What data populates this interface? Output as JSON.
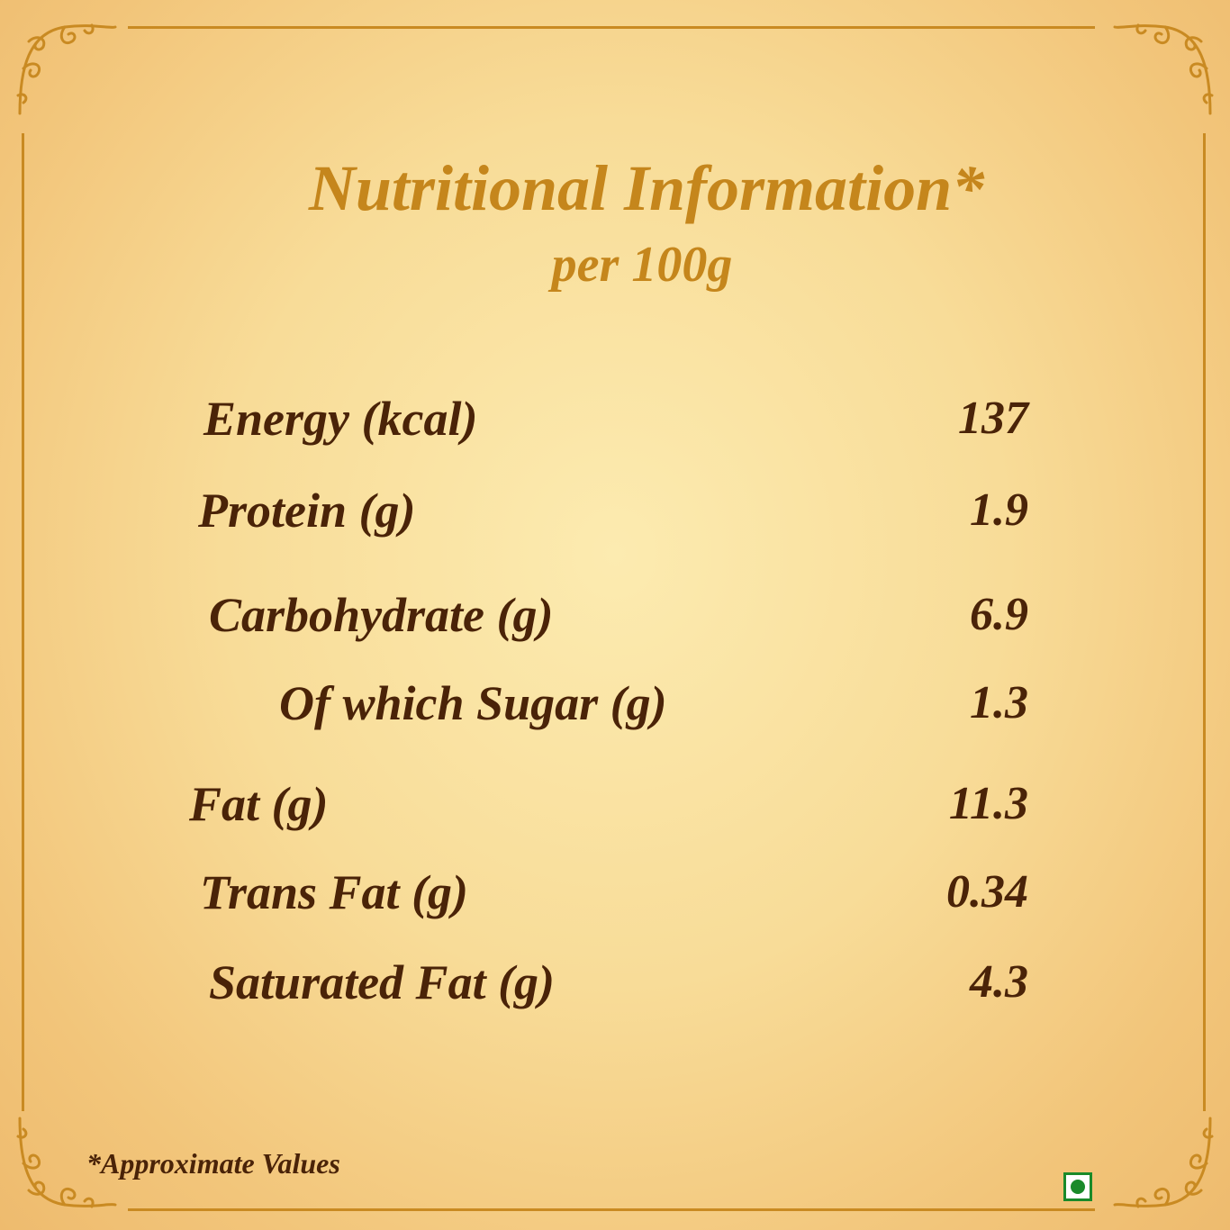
{
  "header": {
    "title": "Nutritional Information*",
    "subtitle": "per 100g"
  },
  "nutrients": [
    {
      "label": "Energy (kcal)",
      "value": "137"
    },
    {
      "label": "Protein (g)",
      "value": "1.9"
    },
    {
      "label": "Carbohydrate (g)",
      "value": "6.9"
    },
    {
      "label": "Of which Sugar (g)",
      "value": "1.3"
    },
    {
      "label": "Fat (g)",
      "value": "11.3"
    },
    {
      "label": "Trans Fat (g)",
      "value": "0.34"
    },
    {
      "label": "Saturated Fat (g)",
      "value": "4.3"
    }
  ],
  "footer": {
    "note": "*Approximate Values",
    "veg_mark": "vegetarian-mark-icon"
  },
  "colors": {
    "heading": "#c5861c",
    "text": "#4a2308",
    "frame": "#c98a22",
    "veg_green": "#1a8a2a"
  }
}
